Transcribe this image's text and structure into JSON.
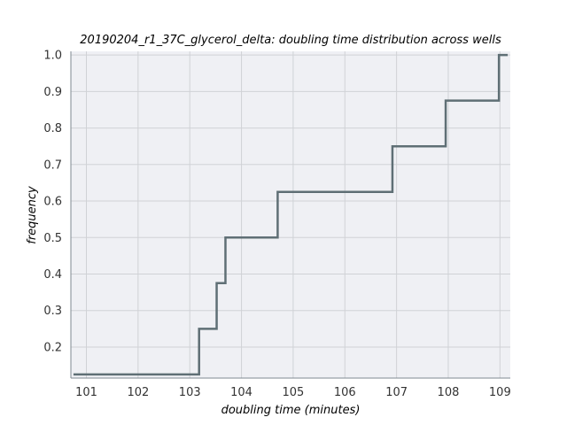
{
  "chart_data": {
    "type": "line",
    "step": "post",
    "title": "20190204_r1_37C_glycerol_delta: doubling time distribution across wells",
    "xlabel": "doubling time (minutes)",
    "ylabel": "frequency",
    "xlim": [
      100.7,
      109.2
    ],
    "ylim": [
      0.115,
      1.01
    ],
    "xticks": [
      101,
      102,
      103,
      104,
      105,
      106,
      107,
      108,
      109
    ],
    "yticks": [
      0.2,
      0.3,
      0.4,
      0.5,
      0.6,
      0.7,
      0.8,
      0.9,
      1.0
    ],
    "ytick_labels": [
      "0.2",
      "0.3",
      "0.4",
      "0.5",
      "0.6",
      "0.7",
      "0.8",
      "0.9",
      "1.0"
    ],
    "grid": true,
    "series": [
      {
        "x": [
          100.75,
          103.18,
          103.52,
          103.69,
          104.7,
          106.92,
          107.95,
          108.98,
          109.15
        ],
        "y": [
          0.125,
          0.25,
          0.375,
          0.5,
          0.625,
          0.75,
          0.875,
          1.0,
          1.0
        ]
      }
    ],
    "colors": {
      "line": "#5f6f75",
      "plot_background": "#eff0f4",
      "grid": "#d0d2d6",
      "spine": "#7f8a92"
    }
  }
}
